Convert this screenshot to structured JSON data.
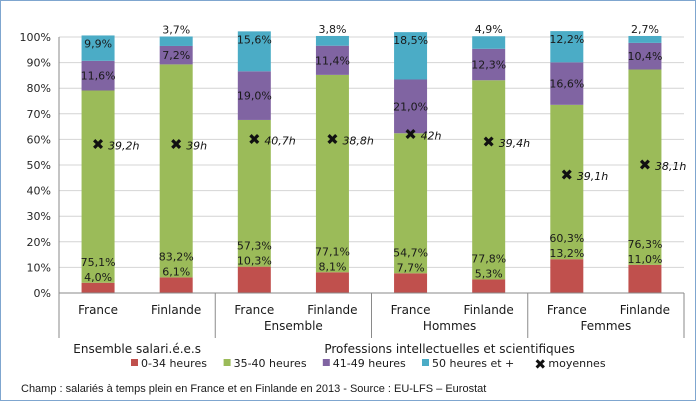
{
  "chart_data": {
    "type": "bar",
    "stacked": true,
    "groups": [
      {
        "label": "Ensemble salari.é.e.s",
        "categories": [
          "France",
          "Finlande"
        ]
      },
      {
        "label": "Ensemble",
        "categories": [
          "France",
          "Finlande"
        ]
      },
      {
        "label": "Hommes",
        "categories": [
          "France",
          "Finlande"
        ]
      },
      {
        "label": "Femmes",
        "categories": [
          "France",
          "Finlande"
        ]
      }
    ],
    "group_header": "Professions intellectuelles et scientifiques",
    "categories": [
      "France",
      "Finlande",
      "France",
      "Finlande",
      "France",
      "Finlande",
      "France",
      "Finlande"
    ],
    "series": [
      {
        "name": "0-34 heures",
        "color": "#c0504d",
        "values": [
          4.0,
          6.1,
          10.3,
          8.1,
          7.7,
          5.3,
          13.2,
          11.0
        ],
        "labels": [
          "4,0%",
          "6,1%",
          "10,3%",
          "8,1%",
          "7,7%",
          "5,3%",
          "13,2%",
          "11,0%"
        ]
      },
      {
        "name": "35-40 heures",
        "color": "#9bbb59",
        "values": [
          75.1,
          83.2,
          57.3,
          77.1,
          54.7,
          77.8,
          60.3,
          76.3
        ],
        "labels": [
          "75,1%",
          "83,2%",
          "57,3%",
          "77,1%",
          "54,7%",
          "77,8%",
          "60,3%",
          "76,3%"
        ]
      },
      {
        "name": "41-49 heures",
        "color": "#8064a2",
        "values": [
          11.6,
          7.2,
          19.0,
          11.4,
          21.0,
          12.3,
          16.6,
          10.4
        ],
        "labels": [
          "11,6%",
          "7,2%",
          "19,0%",
          "11,4%",
          "21,0%",
          "12,3%",
          "16,6%",
          "10,4%"
        ]
      },
      {
        "name": "50 heures et +",
        "color": "#4bacc6",
        "values": [
          9.9,
          3.7,
          15.6,
          3.8,
          18.5,
          4.9,
          12.2,
          2.7
        ],
        "labels": [
          "9,9%",
          "3,7%",
          "15,6%",
          "3,8%",
          "18,5%",
          "4,9%",
          "12,2%",
          "2,7%"
        ]
      }
    ],
    "averages": {
      "name": "moyennes",
      "values": [
        39.2,
        39.0,
        40.7,
        38.8,
        42.0,
        39.4,
        39.1,
        38.1
      ],
      "labels": [
        "39,2h",
        "39h",
        "40,7h",
        "38,8h",
        "42h",
        "39,4h",
        "39,1h",
        "38,1h"
      ],
      "y_percent": [
        58,
        58,
        60,
        60,
        62,
        59,
        46,
        50
      ]
    },
    "yticks": [
      "0%",
      "10%",
      "20%",
      "30%",
      "40%",
      "50%",
      "60%",
      "70%",
      "80%",
      "90%",
      "100%"
    ],
    "ylim": [
      0,
      100
    ],
    "grid": true,
    "legend_position": "bottom"
  },
  "footer": {
    "source": "Champ : salariés à temps plein en France et en Finlande en 2013 - Source : EU-LFS – Eurostat"
  }
}
